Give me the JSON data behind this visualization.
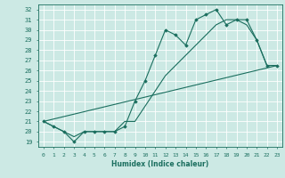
{
  "xlabel": "Humidex (Indice chaleur)",
  "ylabel": "",
  "bg_color": "#cce9e4",
  "line_color": "#1a6e5e",
  "xlim": [
    -0.5,
    23.5
  ],
  "ylim": [
    18.5,
    32.5
  ],
  "xticks": [
    0,
    1,
    2,
    3,
    4,
    5,
    6,
    7,
    8,
    9,
    10,
    11,
    12,
    13,
    14,
    15,
    16,
    17,
    18,
    19,
    20,
    21,
    22,
    23
  ],
  "yticks": [
    19,
    20,
    21,
    22,
    23,
    24,
    25,
    26,
    27,
    28,
    29,
    30,
    31,
    32
  ],
  "series1_x": [
    0,
    1,
    2,
    3,
    4,
    5,
    6,
    7,
    8,
    9,
    10,
    11,
    12,
    13,
    14,
    15,
    16,
    17,
    18,
    19,
    20,
    21,
    22,
    23
  ],
  "series1_y": [
    21.0,
    20.5,
    20.0,
    19.0,
    20.0,
    20.0,
    20.0,
    20.0,
    20.5,
    23.0,
    25.0,
    27.5,
    30.0,
    29.5,
    28.5,
    31.0,
    31.5,
    32.0,
    30.5,
    31.0,
    31.0,
    29.0,
    26.5,
    26.5
  ],
  "series2_x": [
    0,
    1,
    2,
    3,
    4,
    5,
    6,
    7,
    8,
    9,
    10,
    11,
    12,
    13,
    14,
    15,
    16,
    17,
    18,
    19,
    20,
    21,
    22,
    23
  ],
  "series2_y": [
    21.0,
    20.5,
    20.0,
    19.5,
    20.0,
    20.0,
    20.0,
    20.0,
    21.0,
    21.0,
    22.5,
    24.0,
    25.5,
    26.5,
    27.5,
    28.5,
    29.5,
    30.5,
    31.0,
    31.0,
    30.5,
    29.0,
    26.5,
    26.5
  ],
  "series3_x": [
    0,
    23
  ],
  "series3_y": [
    21.0,
    26.5
  ]
}
